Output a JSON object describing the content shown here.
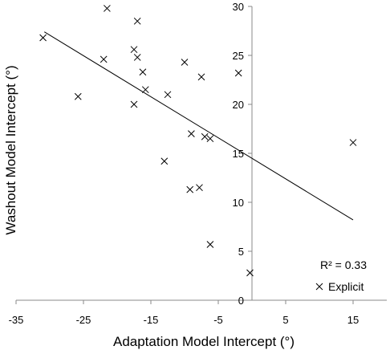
{
  "chart_data": {
    "type": "scatter",
    "xlabel": "Adaptation Model Intercept (°)",
    "ylabel": "Washout Model Intercept (°)",
    "xlim": [
      -35,
      20
    ],
    "ylim": [
      0,
      30
    ],
    "x_ticks": [
      -35,
      -25,
      -15,
      -5,
      5,
      15
    ],
    "x_tick_labels": [
      "-35",
      "-25",
      "-15",
      "-5",
      "5",
      "15"
    ],
    "y_ticks": [
      0,
      5,
      10,
      15,
      20,
      25,
      30
    ],
    "y_tick_labels": [
      "0",
      "5",
      "10",
      "15",
      "20",
      "25",
      "30"
    ],
    "grid": false,
    "legend_position": "bottom-right",
    "series": [
      {
        "name": "Explicit",
        "marker": "x",
        "color": "#000000",
        "points": [
          [
            -31.0,
            26.8
          ],
          [
            -21.5,
            29.8
          ],
          [
            -17.0,
            28.5
          ],
          [
            -25.8,
            20.8
          ],
          [
            -22.0,
            24.6
          ],
          [
            -17.5,
            25.6
          ],
          [
            -17.0,
            24.8
          ],
          [
            -16.2,
            23.3
          ],
          [
            -15.8,
            21.5
          ],
          [
            -17.5,
            20.0
          ],
          [
            -12.5,
            21.0
          ],
          [
            -10.0,
            24.3
          ],
          [
            -7.5,
            22.8
          ],
          [
            -2.0,
            23.2
          ],
          [
            -9.0,
            17.0
          ],
          [
            -7.0,
            16.7
          ],
          [
            -6.2,
            16.5
          ],
          [
            -13.0,
            14.2
          ],
          [
            -9.2,
            11.3
          ],
          [
            -7.8,
            11.5
          ],
          [
            -6.2,
            5.7
          ],
          [
            -0.3,
            2.8
          ],
          [
            15.0,
            16.1
          ]
        ]
      }
    ],
    "trendline": {
      "type": "linear",
      "x": [
        -30.8,
        15.0
      ],
      "y": [
        27.4,
        8.2
      ]
    },
    "annotations": {
      "r2": "R² = 0.33"
    }
  }
}
